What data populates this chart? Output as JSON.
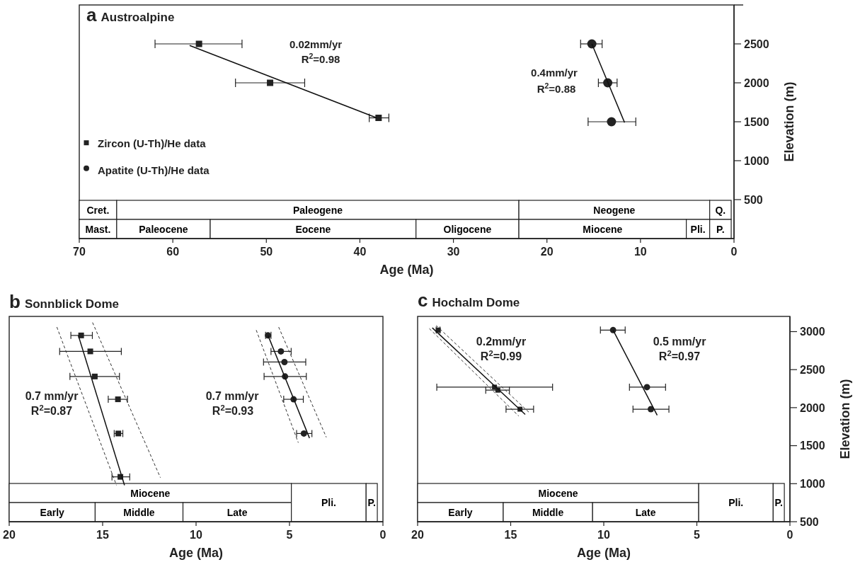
{
  "chart_data": [
    {
      "type": "scatter",
      "title": "a Austroalpine",
      "xlabel": "Age (Ma)",
      "ylabel": "Elevation (m)",
      "xlim": [
        70,
        0
      ],
      "xticks": [
        70,
        60,
        50,
        40,
        30,
        20,
        10,
        0
      ],
      "ylim": [
        0,
        3000
      ],
      "yticks": [
        500,
        1000,
        1500,
        2000,
        2500
      ],
      "legend": "left",
      "series": [
        {
          "name": "Zircon (U-Th)/He data",
          "type": "scatter",
          "marker": "square",
          "color": "#222222",
          "x": [
            57.2,
            49.6,
            38.0
          ],
          "values": [
            2500,
            2000,
            1550
          ],
          "xerrors": [
            [
              52.6,
              61.9
            ],
            [
              45.9,
              53.3
            ],
            [
              36.9,
              39.0
            ]
          ]
        },
        {
          "name": "Apatite (U-Th)/He data",
          "type": "scatter",
          "marker": "circle",
          "color": "#222222",
          "x": [
            15.2,
            13.5,
            13.1
          ],
          "values": [
            2500,
            2000,
            1500
          ],
          "xerrors": [
            [
              14.1,
              16.4
            ],
            [
              12.5,
              14.5
            ],
            [
              10.5,
              15.6
            ]
          ]
        },
        {
          "type": "line",
          "color": "#111111",
          "line_style": "solid",
          "x": [
            58.2,
            38.2
          ],
          "values": [
            2480,
            1550
          ]
        },
        {
          "type": "line",
          "color": "#111111",
          "line_style": "solid",
          "x": [
            15.2,
            11.7
          ],
          "values": [
            2500,
            1490
          ]
        }
      ],
      "annotations": [
        "0.02mm/yr",
        "R$^{2}$=0.98",
        "0.4mm/yr",
        "R$^{2}$=0.88"
      ],
      "bands": [
        {
          "axis": "x",
          "from": 70,
          "to": 66,
          "label": "Cret."
        },
        {
          "axis": "x",
          "from": 66,
          "to": 23,
          "label": "Paleogene"
        },
        {
          "axis": "x",
          "from": 23,
          "to": 2.6,
          "label": "Neogene"
        },
        {
          "axis": "x",
          "from": 2.6,
          "to": 0.3,
          "label": "Q."
        },
        {
          "axis": "x",
          "from": 70,
          "to": 66,
          "label": "Mast."
        },
        {
          "axis": "x",
          "from": 66,
          "to": 56,
          "label": "Paleocene"
        },
        {
          "axis": "x",
          "from": 56,
          "to": 34,
          "label": "Eocene"
        },
        {
          "axis": "x",
          "from": 34,
          "to": 23,
          "label": "Oligocene"
        },
        {
          "axis": "x",
          "from": 23,
          "to": 5.1,
          "label": "Miocene"
        },
        {
          "axis": "x",
          "from": 5.1,
          "to": 2.6,
          "label": "Pli."
        },
        {
          "axis": "x",
          "from": 2.6,
          "to": 0.3,
          "label": "P."
        }
      ]
    },
    {
      "type": "scatter",
      "title": "b Sonnblick Dome",
      "xlabel": "Age (Ma)",
      "xlim": [
        20,
        0
      ],
      "xticks": [
        20,
        15,
        10,
        5,
        0
      ],
      "ylim": [
        500,
        3200
      ],
      "tick_labels": "x",
      "series": [
        {
          "type": "scatter",
          "marker": "square",
          "color": "#222222",
          "x": [
            16.15,
            15.66,
            15.42,
            14.18,
            14.16,
            14.05
          ],
          "values": [
            2950,
            2740,
            2410,
            2110,
            1660,
            1090
          ],
          "xerrors": [
            [
              15.55,
              16.7
            ],
            [
              14.0,
              17.3
            ],
            [
              14.1,
              16.75
            ],
            [
              13.67,
              14.7
            ],
            [
              13.92,
              14.38
            ],
            [
              13.55,
              14.5
            ]
          ]
        },
        {
          "type": "scatter",
          "marker": "circle",
          "color": "#222222",
          "x": [
            6.15,
            5.46,
            5.27,
            5.24,
            4.78,
            4.23
          ],
          "values": [
            2950,
            2740,
            2600,
            2410,
            2110,
            1660
          ],
          "xerrors": [
            [
              5.99,
              6.28
            ],
            [
              4.91,
              5.99
            ],
            [
              4.13,
              6.39
            ],
            [
              4.1,
              6.36
            ],
            [
              4.26,
              5.31
            ],
            [
              3.8,
              4.62
            ]
          ]
        },
        {
          "type": "line",
          "color": "#111111",
          "line_style": "solid",
          "x": [
            16.3,
            13.83
          ],
          "values": [
            2950,
            980
          ]
        },
        {
          "type": "line",
          "color": "#333333",
          "line_style": "dashed",
          "x": [
            17.45,
            14.26
          ],
          "values": [
            3060,
            980
          ]
        },
        {
          "type": "line",
          "color": "#333333",
          "line_style": "dashed",
          "x": [
            15.54,
            11.91
          ],
          "values": [
            3120,
            1080
          ]
        },
        {
          "type": "line",
          "color": "#111111",
          "line_style": "solid",
          "x": [
            6.15,
            3.93
          ],
          "values": [
            2950,
            1600
          ]
        },
        {
          "type": "line",
          "color": "#333333",
          "line_style": "dashed",
          "x": [
            6.78,
            4.53
          ],
          "values": [
            3020,
            1540
          ]
        },
        {
          "type": "line",
          "color": "#333333",
          "line_style": "dashed",
          "x": [
            5.58,
            3.03
          ],
          "values": [
            3060,
            1610
          ]
        }
      ],
      "annotations": [
        "0.7 mm/yr",
        "R$^{2}$=0.87",
        "0.7 mm/yr",
        "R$^{2}$=0.93"
      ],
      "bands": [
        {
          "axis": "x",
          "from": 20,
          "to": 4.9,
          "label": "Miocene"
        },
        {
          "axis": "x",
          "from": 20,
          "to": 15.4,
          "label": "Early"
        },
        {
          "axis": "x",
          "from": 15.4,
          "to": 10.7,
          "label": "Middle"
        },
        {
          "axis": "x",
          "from": 10.7,
          "to": 4.9,
          "label": "Late"
        },
        {
          "axis": "x",
          "from": 4.9,
          "to": 0.9,
          "label": "Pli."
        },
        {
          "axis": "x",
          "from": 0.9,
          "to": 0.3,
          "label": "P."
        }
      ]
    },
    {
      "type": "scatter",
      "title": "c Hochalm Dome",
      "xlabel": "Age (Ma)",
      "ylabel": "Elevation (m)",
      "xlim": [
        20,
        0
      ],
      "xticks": [
        20,
        15,
        10,
        5,
        0
      ],
      "ylim": [
        500,
        3200
      ],
      "yticks": [
        500,
        1000,
        1500,
        2000,
        2500,
        3000
      ],
      "series": [
        {
          "type": "scatter",
          "marker": "square",
          "color": "#222222",
          "x": [
            18.89,
            15.87,
            15.69,
            14.5
          ],
          "values": [
            3020,
            2270,
            2230,
            1980
          ],
          "xerrors": [
            [
              18.8,
              19.0
            ],
            [
              12.75,
              18.97
            ],
            [
              15.07,
              16.34
            ],
            [
              13.77,
              15.25
            ]
          ]
        },
        {
          "type": "scatter",
          "marker": "circle",
          "color": "#222222",
          "x": [
            9.5,
            7.68,
            7.47
          ],
          "values": [
            3020,
            2270,
            1980
          ],
          "xerrors": [
            [
              8.85,
              10.18
            ],
            [
              6.68,
              8.62
            ],
            [
              6.5,
              8.43
            ]
          ]
        },
        {
          "type": "line",
          "color": "#111111",
          "line_style": "solid",
          "x": [
            19.21,
            14.22
          ],
          "values": [
            3050,
            1910
          ]
        },
        {
          "type": "line",
          "color": "#333333",
          "line_style": "dashed",
          "x": [
            19.37,
            14.57
          ],
          "values": [
            3040,
            1890
          ]
        },
        {
          "type": "line",
          "color": "#333333",
          "line_style": "dashed",
          "x": [
            19.0,
            13.98
          ],
          "values": [
            3080,
            1930
          ]
        },
        {
          "type": "line",
          "color": "#111111",
          "line_style": "solid",
          "x": [
            9.5,
            7.13
          ],
          "values": [
            3020,
            1900
          ]
        }
      ],
      "annotations": [
        "0.2mm/yr",
        "R$^{2}$=0.99",
        "0.5 mm/yr",
        "R$^{2}$=0.97"
      ],
      "bands": [
        {
          "axis": "x",
          "from": 20,
          "to": 4.9,
          "label": "Miocene"
        },
        {
          "axis": "x",
          "from": 20,
          "to": 15.4,
          "label": "Early"
        },
        {
          "axis": "x",
          "from": 15.4,
          "to": 10.6,
          "label": "Middle"
        },
        {
          "axis": "x",
          "from": 10.6,
          "to": 4.9,
          "label": "Late"
        },
        {
          "axis": "x",
          "from": 4.9,
          "to": 0.9,
          "label": "Pli."
        },
        {
          "axis": "x",
          "from": 0.9,
          "to": 0.3,
          "label": "P."
        }
      ]
    }
  ]
}
